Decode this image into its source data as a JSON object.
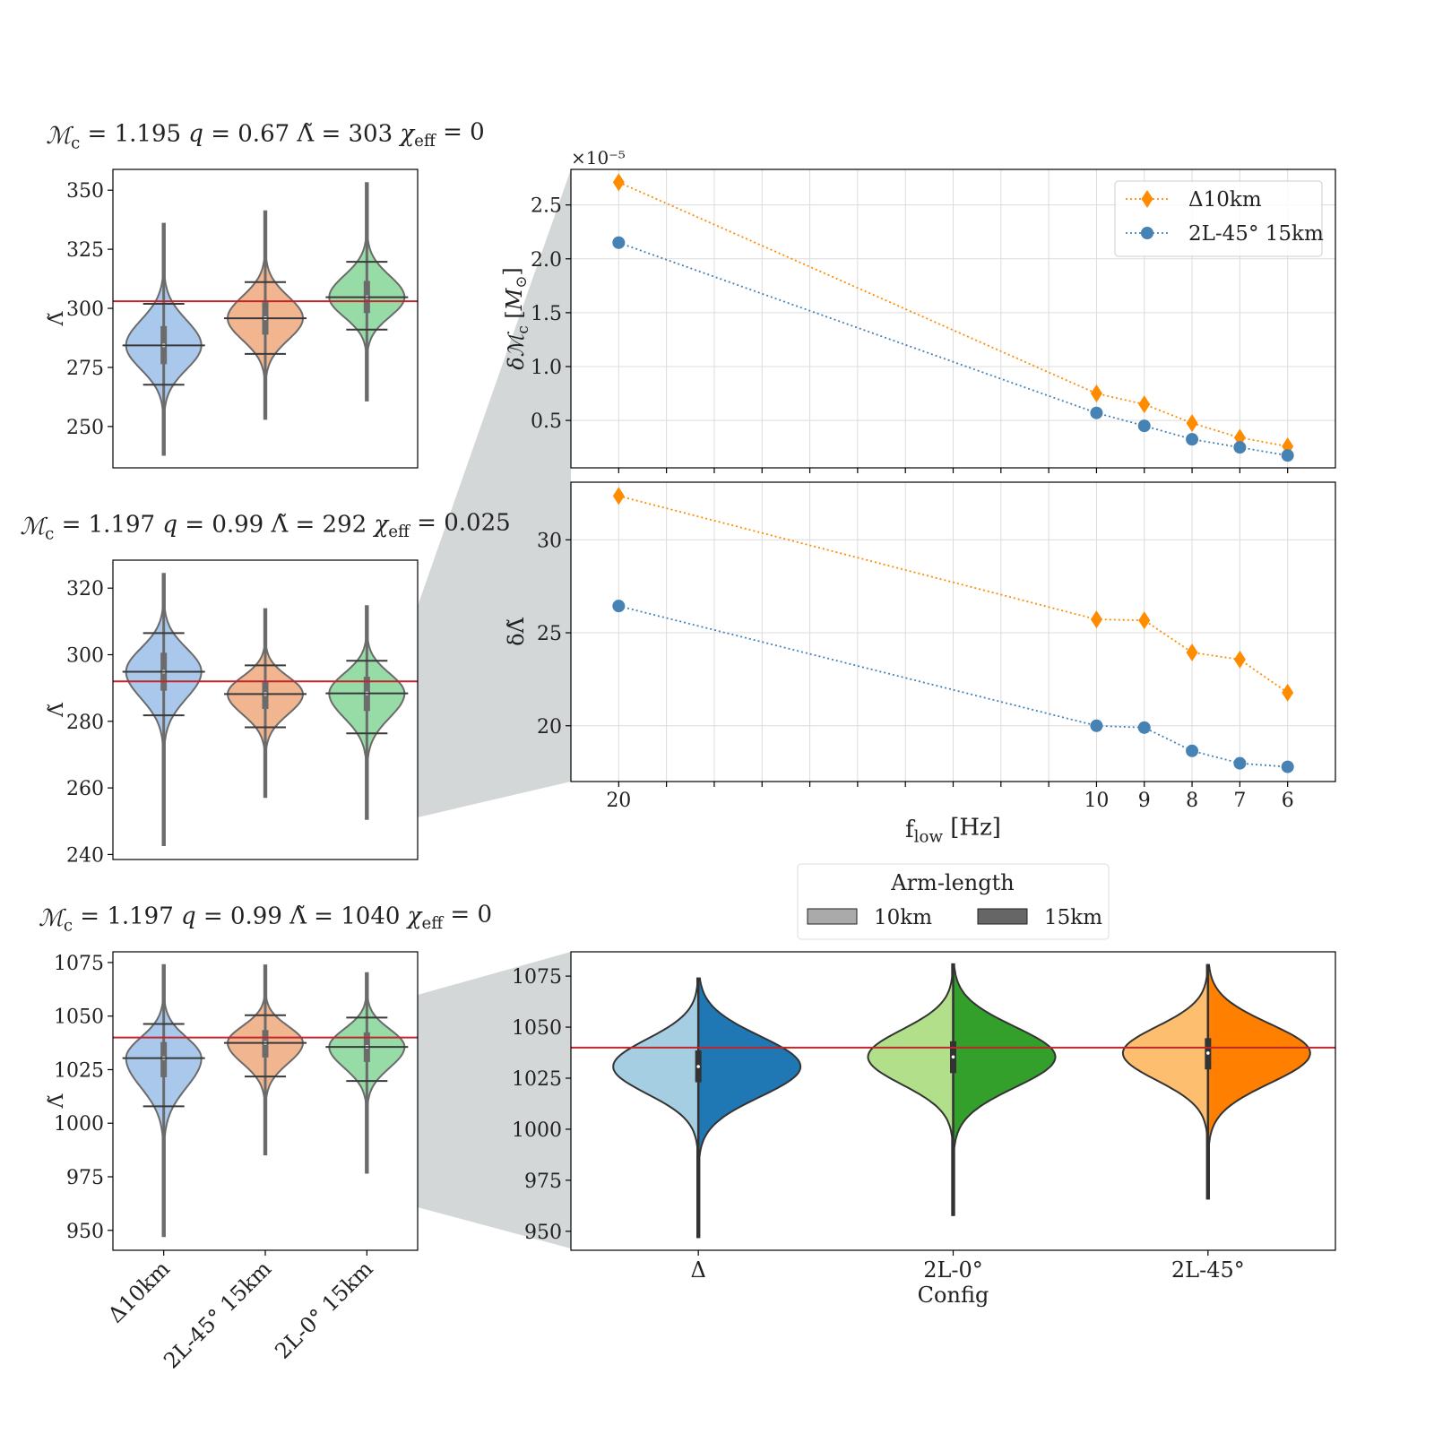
{
  "colors": {
    "connector": "#d4d7d8",
    "reference_line": "#c0272d",
    "grid": "#dcdcdc"
  },
  "chart_data": [
    {
      "type": "violin",
      "title": [
        {
          "text": "ℳ",
          "italic": true
        },
        {
          "sub": "c"
        },
        {
          "text": " = 1.195 "
        },
        {
          "text": "q",
          "italic": true
        },
        {
          "text": " = 0.67 Λ̃ = 303 "
        },
        {
          "text": "χ",
          "italic": true
        },
        {
          "sub": "eff"
        },
        {
          "text": " = 0"
        }
      ],
      "ylabel": "Λ̃",
      "ylim": [
        232.5,
        358.8
      ],
      "yticks": [
        250,
        275,
        300,
        325,
        350
      ],
      "reference_line": 303,
      "grid": false,
      "violins": [
        {
          "min": 238,
          "p5": 267.7,
          "q1": 276.4,
          "median": 284.3,
          "q3": 292.5,
          "p95": 301.9,
          "max": 335.8,
          "color": "#a9c8ec"
        },
        {
          "min": 253.2,
          "p5": 280.7,
          "q1": 288.9,
          "median": 295.8,
          "q3": 302.7,
          "p95": 311.1,
          "max": 341.1,
          "color": "#f1b58f"
        },
        {
          "min": 261,
          "p5": 291,
          "q1": 298,
          "median": 304.7,
          "q3": 311.6,
          "p95": 319.7,
          "max": 353,
          "color": "#97dba7"
        }
      ]
    },
    {
      "type": "violin",
      "title": [
        {
          "text": "ℳ",
          "italic": true
        },
        {
          "sub": "c"
        },
        {
          "text": " = 1.197 "
        },
        {
          "text": "q",
          "italic": true
        },
        {
          "text": " = 0.99 Λ̃ = 292 "
        },
        {
          "text": "χ",
          "italic": true
        },
        {
          "sub": "eff"
        },
        {
          "text": " = 0.025"
        }
      ],
      "ylabel": "Λ̃",
      "ylim": [
        238.5,
        328.4
      ],
      "yticks": [
        240,
        260,
        280,
        300,
        320
      ],
      "reference_line": 292,
      "grid": false,
      "violins": [
        {
          "min": 242.8,
          "p5": 281.8,
          "q1": 289.2,
          "median": 294.9,
          "q3": 300.6,
          "p95": 306.5,
          "max": 324.3,
          "color": "#a9c8ec"
        },
        {
          "min": 257.3,
          "p5": 278.2,
          "q1": 283.7,
          "median": 288.2,
          "q3": 292,
          "p95": 296.8,
          "max": 313.7,
          "color": "#f1b58f"
        },
        {
          "min": 250.7,
          "p5": 276.4,
          "q1": 283.1,
          "median": 288.4,
          "q3": 293.4,
          "p95": 298.2,
          "max": 314.6,
          "color": "#97dba7"
        }
      ]
    },
    {
      "type": "violin",
      "title": [
        {
          "text": "ℳ",
          "italic": true
        },
        {
          "sub": "c"
        },
        {
          "text": " = 1.197 "
        },
        {
          "text": "q",
          "italic": true
        },
        {
          "text": " = 0.99 Λ̃ = 1040 "
        },
        {
          "text": "χ",
          "italic": true
        },
        {
          "sub": "eff"
        },
        {
          "text": " = 0"
        }
      ],
      "ylabel": "Λ̃",
      "ylim": [
        940.7,
        1080
      ],
      "yticks": [
        950,
        975,
        1000,
        1025,
        1050,
        1075
      ],
      "reference_line": 1040,
      "grid": false,
      "categories": [
        "Δ10km",
        "2L-45° 15km",
        "2L-0° 15km"
      ],
      "violins": [
        {
          "min": 947.3,
          "p5": 1007.9,
          "q1": 1021.5,
          "median": 1030.4,
          "q3": 1037.9,
          "p95": 1046.3,
          "max": 1073.8,
          "color": "#a9c8ec"
        },
        {
          "min": 985.4,
          "p5": 1021.8,
          "q1": 1030.7,
          "median": 1037.5,
          "q3": 1043.5,
          "p95": 1050.4,
          "max": 1073.7,
          "color": "#f1b58f"
        },
        {
          "min": 976.9,
          "p5": 1019.7,
          "q1": 1028.6,
          "median": 1035.6,
          "q3": 1042.4,
          "p95": 1049.3,
          "max": 1070.1,
          "color": "#97dba7"
        }
      ]
    },
    {
      "type": "line",
      "ylabel": "δℳc [M⊙]",
      "ylabel_parts": [
        {
          "text": "δℳ",
          "italic": true
        },
        {
          "sub": "c"
        },
        {
          "text": " ["
        },
        {
          "text": "M",
          "italic": true
        },
        {
          "sub": "⊙"
        },
        {
          "text": "]"
        }
      ],
      "y_multiplier": "×10⁻⁵",
      "x": [
        20,
        10,
        9,
        8,
        7,
        6
      ],
      "xlim": [
        21,
        5
      ],
      "x_minor_ticks": [
        6,
        7,
        8,
        9,
        10,
        11,
        12,
        13,
        14,
        15,
        16,
        17,
        18,
        19,
        20
      ],
      "ylim": [
        0.06,
        2.83
      ],
      "yticks": [
        0.5,
        1.0,
        1.5,
        2.0,
        2.5
      ],
      "ytick_labels": [
        "0.5",
        "1.0",
        "1.5",
        "2.0",
        "2.5"
      ],
      "grid": true,
      "legend": "top-right",
      "series": [
        {
          "name": "Δ10km",
          "values": [
            2.71,
            0.75,
            0.65,
            0.475,
            0.34,
            0.26
          ],
          "color": "#ff8c00",
          "marker": "diamond",
          "linestyle": "dotted"
        },
        {
          "name": "2L-45° 15km",
          "values": [
            2.15,
            0.57,
            0.45,
            0.325,
            0.25,
            0.175
          ],
          "color": "#4682b4",
          "marker": "circle",
          "linestyle": "dotted"
        }
      ]
    },
    {
      "type": "line",
      "ylabel": "δΛ̃",
      "xlabel_parts": [
        {
          "text": "f"
        },
        {
          "sub": "low"
        },
        {
          "text": " [Hz]"
        }
      ],
      "x": [
        20,
        10,
        9,
        8,
        7,
        6
      ],
      "xtick_labels": [
        "20",
        "10",
        "9",
        "8",
        "7",
        "6"
      ],
      "xlim": [
        21,
        5
      ],
      "x_minor_ticks": [
        6,
        7,
        8,
        9,
        10,
        11,
        12,
        13,
        14,
        15,
        16,
        17,
        18,
        19,
        20
      ],
      "ylim": [
        17.0,
        33.1
      ],
      "yticks": [
        20,
        25,
        30
      ],
      "ytick_labels": [
        "20",
        "25",
        "30"
      ],
      "grid": true,
      "series": [
        {
          "values": [
            32.36,
            25.72,
            25.67,
            23.94,
            23.56,
            21.78
          ],
          "color": "#ff8c00",
          "marker": "diamond",
          "linestyle": "dotted"
        },
        {
          "values": [
            26.44,
            20.0,
            19.9,
            18.65,
            17.98,
            17.79
          ],
          "color": "#4682b4",
          "marker": "circle",
          "linestyle": "dotted"
        }
      ]
    },
    {
      "type": "split-violin",
      "xlabel": "Config",
      "categories": [
        "Δ",
        "2L-0°",
        "2L-45°"
      ],
      "ylim": [
        940.7,
        1086.9
      ],
      "yticks": [
        950,
        975,
        1000,
        1025,
        1050,
        1075
      ],
      "reference_line": 1040,
      "legend": {
        "title": "Arm-length",
        "position": "above",
        "entries": [
          {
            "label": "10km",
            "color": "#aaaaaa"
          },
          {
            "label": "15km",
            "color": "#666666"
          }
        ]
      },
      "violins": [
        {
          "min": 947.1,
          "q1": 1023,
          "median": 1030.7,
          "q3": 1038.6,
          "max": 1073.9,
          "left_color": "#a6cee3",
          "right_color": "#1f78b4"
        },
        {
          "min": 957.9,
          "q1": 1027.5,
          "median": 1035.4,
          "q3": 1043.1,
          "max": 1080.8,
          "left_color": "#b2df8a",
          "right_color": "#33a02c"
        },
        {
          "min": 966,
          "q1": 1029.3,
          "median": 1037.3,
          "q3": 1044.6,
          "max": 1080.5,
          "left_color": "#fdbf6f",
          "right_color": "#ff7f00"
        }
      ]
    }
  ]
}
